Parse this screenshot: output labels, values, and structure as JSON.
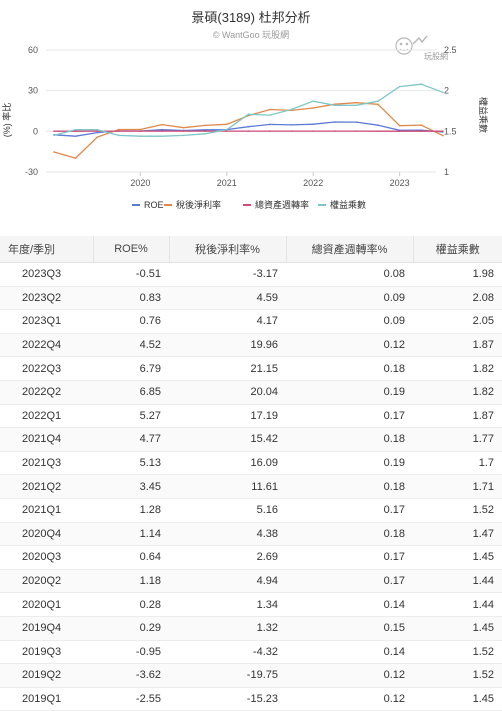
{
  "chart_data": {
    "type": "line",
    "title": "景碩(3189) 杜邦分析",
    "subtitle": "© WantGoo 玩股網",
    "watermark": "玩股網",
    "ylabel_left": "(%) 率比",
    "ylabel_right": "權益乘數",
    "left_ticks": [
      "60",
      "30",
      "0",
      "-30"
    ],
    "left_ylim": [
      -30,
      60
    ],
    "right_ticks": [
      "2.5",
      "2",
      "1.5",
      "1"
    ],
    "right_ylim": [
      1,
      2.5
    ],
    "x_ticks": [
      "2020",
      "2021",
      "2022",
      "2023"
    ],
    "x": [
      "2019Q1",
      "2019Q2",
      "2019Q3",
      "2019Q4",
      "2020Q1",
      "2020Q2",
      "2020Q3",
      "2020Q4",
      "2021Q1",
      "2021Q2",
      "2021Q3",
      "2021Q4",
      "2022Q1",
      "2022Q2",
      "2022Q3",
      "2022Q4",
      "2023Q1",
      "2023Q2",
      "2023Q3"
    ],
    "grid": true,
    "legend_position": "bottom",
    "series": [
      {
        "name": "ROE",
        "axis": "left",
        "color": "#5b7bd5",
        "values": [
          -2.55,
          -3.62,
          -0.95,
          0.29,
          0.28,
          1.18,
          0.64,
          1.14,
          1.28,
          3.45,
          5.13,
          4.77,
          5.27,
          6.85,
          6.79,
          4.52,
          0.76,
          0.83,
          -0.51
        ]
      },
      {
        "name": "稅後淨利率",
        "axis": "left",
        "color": "#e0884a",
        "values": [
          -15.23,
          -19.75,
          -4.32,
          1.32,
          1.34,
          4.94,
          2.69,
          4.38,
          5.16,
          11.61,
          16.09,
          15.42,
          17.19,
          20.04,
          21.15,
          19.96,
          4.17,
          4.59,
          -3.17
        ]
      },
      {
        "name": "總資產週轉率",
        "axis": "left",
        "color": "#d04b78",
        "values": [
          0.12,
          0.12,
          0.14,
          0.15,
          0.14,
          0.17,
          0.17,
          0.18,
          0.17,
          0.18,
          0.19,
          0.18,
          0.17,
          0.19,
          0.18,
          0.12,
          0.09,
          0.09,
          0.08
        ]
      },
      {
        "name": "權益乘數",
        "axis": "right",
        "color": "#7ec6c8",
        "values": [
          1.45,
          1.52,
          1.52,
          1.45,
          1.44,
          1.44,
          1.45,
          1.47,
          1.52,
          1.71,
          1.7,
          1.77,
          1.87,
          1.82,
          1.82,
          1.87,
          2.05,
          2.08,
          1.98
        ]
      }
    ]
  },
  "table": {
    "headers": [
      "年度/季別",
      "ROE%",
      "稅後淨利率%",
      "總資產週轉率%",
      "權益乘數"
    ],
    "rows": [
      [
        "2023Q3",
        "-0.51",
        "-3.17",
        "0.08",
        "1.98"
      ],
      [
        "2023Q2",
        "0.83",
        "4.59",
        "0.09",
        "2.08"
      ],
      [
        "2023Q1",
        "0.76",
        "4.17",
        "0.09",
        "2.05"
      ],
      [
        "2022Q4",
        "4.52",
        "19.96",
        "0.12",
        "1.87"
      ],
      [
        "2022Q3",
        "6.79",
        "21.15",
        "0.18",
        "1.82"
      ],
      [
        "2022Q2",
        "6.85",
        "20.04",
        "0.19",
        "1.82"
      ],
      [
        "2022Q1",
        "5.27",
        "17.19",
        "0.17",
        "1.87"
      ],
      [
        "2021Q4",
        "4.77",
        "15.42",
        "0.18",
        "1.77"
      ],
      [
        "2021Q3",
        "5.13",
        "16.09",
        "0.19",
        "1.7"
      ],
      [
        "2021Q2",
        "3.45",
        "11.61",
        "0.18",
        "1.71"
      ],
      [
        "2021Q1",
        "1.28",
        "5.16",
        "0.17",
        "1.52"
      ],
      [
        "2020Q4",
        "1.14",
        "4.38",
        "0.18",
        "1.47"
      ],
      [
        "2020Q3",
        "0.64",
        "2.69",
        "0.17",
        "1.45"
      ],
      [
        "2020Q2",
        "1.18",
        "4.94",
        "0.17",
        "1.44"
      ],
      [
        "2020Q1",
        "0.28",
        "1.34",
        "0.14",
        "1.44"
      ],
      [
        "2019Q4",
        "0.29",
        "1.32",
        "0.15",
        "1.45"
      ],
      [
        "2019Q3",
        "-0.95",
        "-4.32",
        "0.14",
        "1.52"
      ],
      [
        "2019Q2",
        "-3.62",
        "-19.75",
        "0.12",
        "1.52"
      ],
      [
        "2019Q1",
        "-2.55",
        "-15.23",
        "0.12",
        "1.45"
      ]
    ]
  }
}
